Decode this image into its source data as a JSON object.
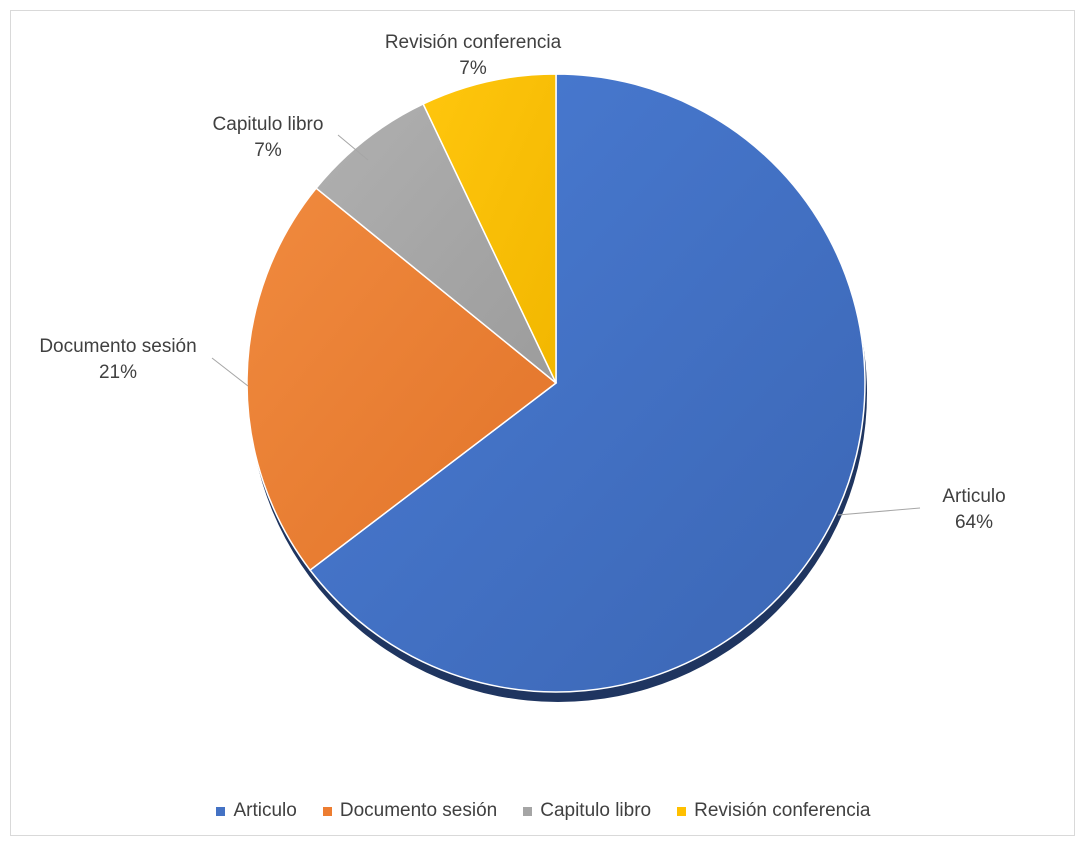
{
  "chart_data": {
    "type": "pie",
    "title": "",
    "categories": [
      "Articulo",
      "Documento sesión",
      "Capitulo libro",
      "Revisión conferencia"
    ],
    "values": [
      64,
      21,
      7,
      7
    ],
    "value_labels": [
      "64%",
      "21%",
      "7%",
      "7%"
    ],
    "colors": [
      "#4472C4",
      "#ED7D31",
      "#A5A5A5",
      "#FFC000"
    ],
    "legend": {
      "position": "bottom",
      "items": [
        "Articulo",
        "Documento sesión",
        "Capitulo libro",
        "Revisión conferencia"
      ]
    }
  }
}
